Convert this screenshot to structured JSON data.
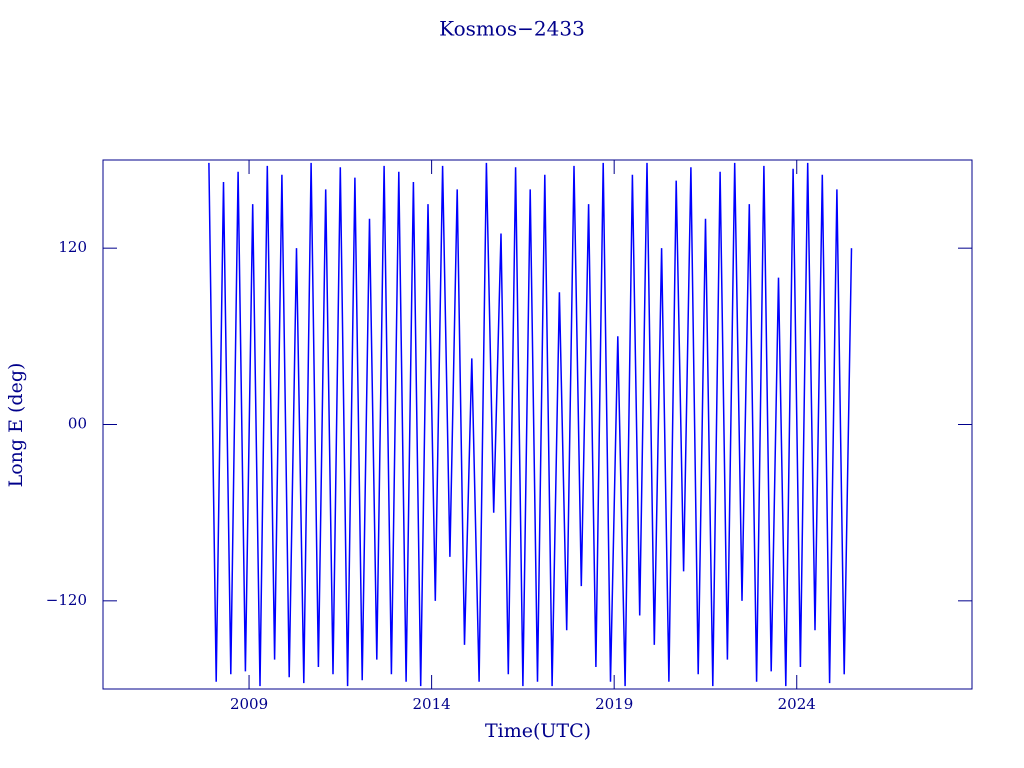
{
  "chart_data": {
    "type": "line",
    "title": "Kosmos−2433",
    "xlabel": "Time(UTC)",
    "ylabel": "Long E (deg)",
    "x": [
      2007.9,
      2008.1,
      2008.3,
      2008.5,
      2008.7,
      2008.9,
      2009.1,
      2009.3,
      2009.5,
      2009.7,
      2009.9,
      2010.1,
      2010.3,
      2010.5,
      2010.7,
      2010.9,
      2011.1,
      2011.3,
      2011.5,
      2011.7,
      2011.9,
      2012.1,
      2012.3,
      2012.5,
      2012.7,
      2012.9,
      2013.1,
      2013.3,
      2013.5,
      2013.7,
      2013.9,
      2014.1,
      2014.3,
      2014.5,
      2014.7,
      2014.9,
      2015.1,
      2015.3,
      2015.5,
      2015.7,
      2015.9,
      2016.1,
      2016.3,
      2016.5,
      2016.7,
      2016.9,
      2017.1,
      2017.3,
      2017.5,
      2017.7,
      2017.9,
      2018.1,
      2018.3,
      2018.5,
      2018.7,
      2018.9,
      2019.1,
      2019.3,
      2019.5,
      2019.7,
      2019.9,
      2020.1,
      2020.3,
      2020.5,
      2020.7,
      2020.9,
      2021.1,
      2021.3,
      2021.5,
      2021.7,
      2021.9,
      2022.1,
      2022.3,
      2022.5,
      2022.7,
      2022.9,
      2023.1,
      2023.3,
      2023.5,
      2023.7,
      2023.9,
      2024.1,
      2024.3,
      2024.5,
      2024.7,
      2024.9,
      2025.1,
      2025.3,
      2025.5
    ],
    "series": [
      {
        "color": "#0000ff",
        "values": [
          178,
          -175,
          165,
          -170,
          172,
          -168,
          150,
          -178,
          176,
          -160,
          170,
          -172,
          120,
          -176,
          178,
          -165,
          160,
          -170,
          175,
          -178,
          168,
          -174,
          140,
          -160,
          176,
          -170,
          172,
          -175,
          165,
          -178,
          150,
          -120,
          176,
          -90,
          160,
          -150,
          45,
          -175,
          178,
          -60,
          130,
          -170,
          175,
          -178,
          160,
          -175,
          170,
          -178,
          90,
          -140,
          176,
          -110,
          150,
          -165,
          178,
          -175,
          60,
          -178,
          170,
          -130,
          178,
          -150,
          120,
          -175,
          166,
          -100,
          175,
          -170,
          140,
          -178,
          172,
          -160,
          178,
          -120,
          150,
          -175,
          176,
          -168,
          100,
          -178,
          174,
          -165,
          178,
          -140,
          170,
          -176,
          160,
          -170,
          120
        ]
      }
    ],
    "xlim": [
      2005,
      2028.8
    ],
    "xticks": [
      2009,
      2014,
      2019,
      2024
    ],
    "ylim": [
      -180,
      180
    ],
    "yticks": [
      {
        "value": -120,
        "label": "−120"
      },
      {
        "value": 0,
        "label": "00"
      },
      120
    ]
  }
}
